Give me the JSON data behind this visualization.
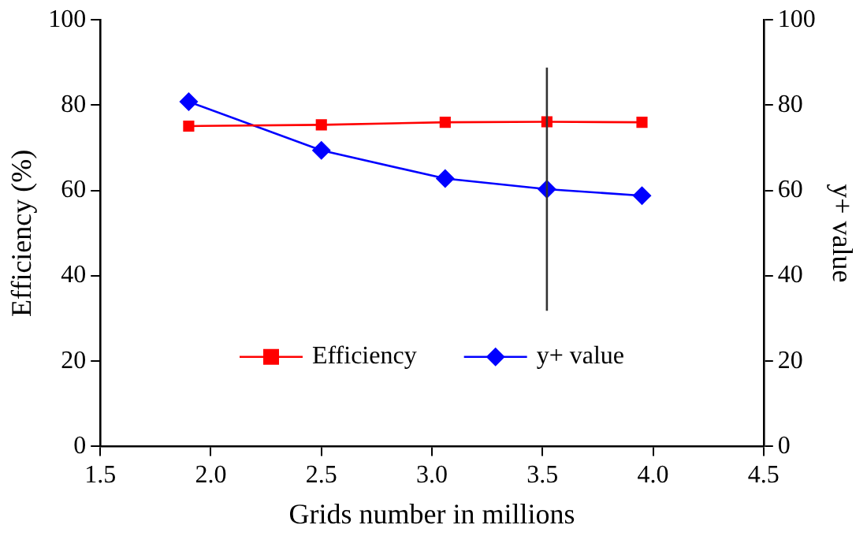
{
  "chart_data": {
    "type": "line",
    "xlabel": "Grids number in millions",
    "ylabel": "Efficiency (%)",
    "y2label": "y+ value",
    "x": [
      1.9,
      2.5,
      3.06,
      3.52,
      3.95
    ],
    "series": [
      {
        "name": "Efficiency",
        "color": "#ff0000",
        "marker": "square",
        "values": [
          75.1,
          75.4,
          76.0,
          76.1,
          76.0
        ]
      },
      {
        "name": "y+ value",
        "color": "#0000ff",
        "marker": "diamond",
        "axis": "y2",
        "values": [
          80.8,
          69.4,
          62.8,
          60.3,
          58.8
        ],
        "errors": [
          null,
          null,
          null,
          28.5,
          null
        ]
      }
    ],
    "xlim": [
      1.5,
      4.5
    ],
    "xticks": [
      {
        "value": 1.5,
        "label": "1.5"
      },
      {
        "value": 2,
        "label": "2.0"
      },
      {
        "value": 2.5,
        "label": "2.5"
      },
      {
        "value": 3,
        "label": "3.0"
      },
      {
        "value": 3.5,
        "label": "3.5"
      },
      {
        "value": 4,
        "label": "4.0"
      },
      {
        "value": 4.5,
        "label": "4.5"
      }
    ],
    "ylim": [
      0,
      100
    ],
    "yticks": [
      0,
      20,
      40,
      60,
      80,
      100
    ],
    "y2lim": [
      0,
      100
    ],
    "y2ticks": [
      0,
      20,
      40,
      60,
      80,
      100
    ],
    "grid": false,
    "legend": "bottom",
    "line_style": "solid"
  }
}
